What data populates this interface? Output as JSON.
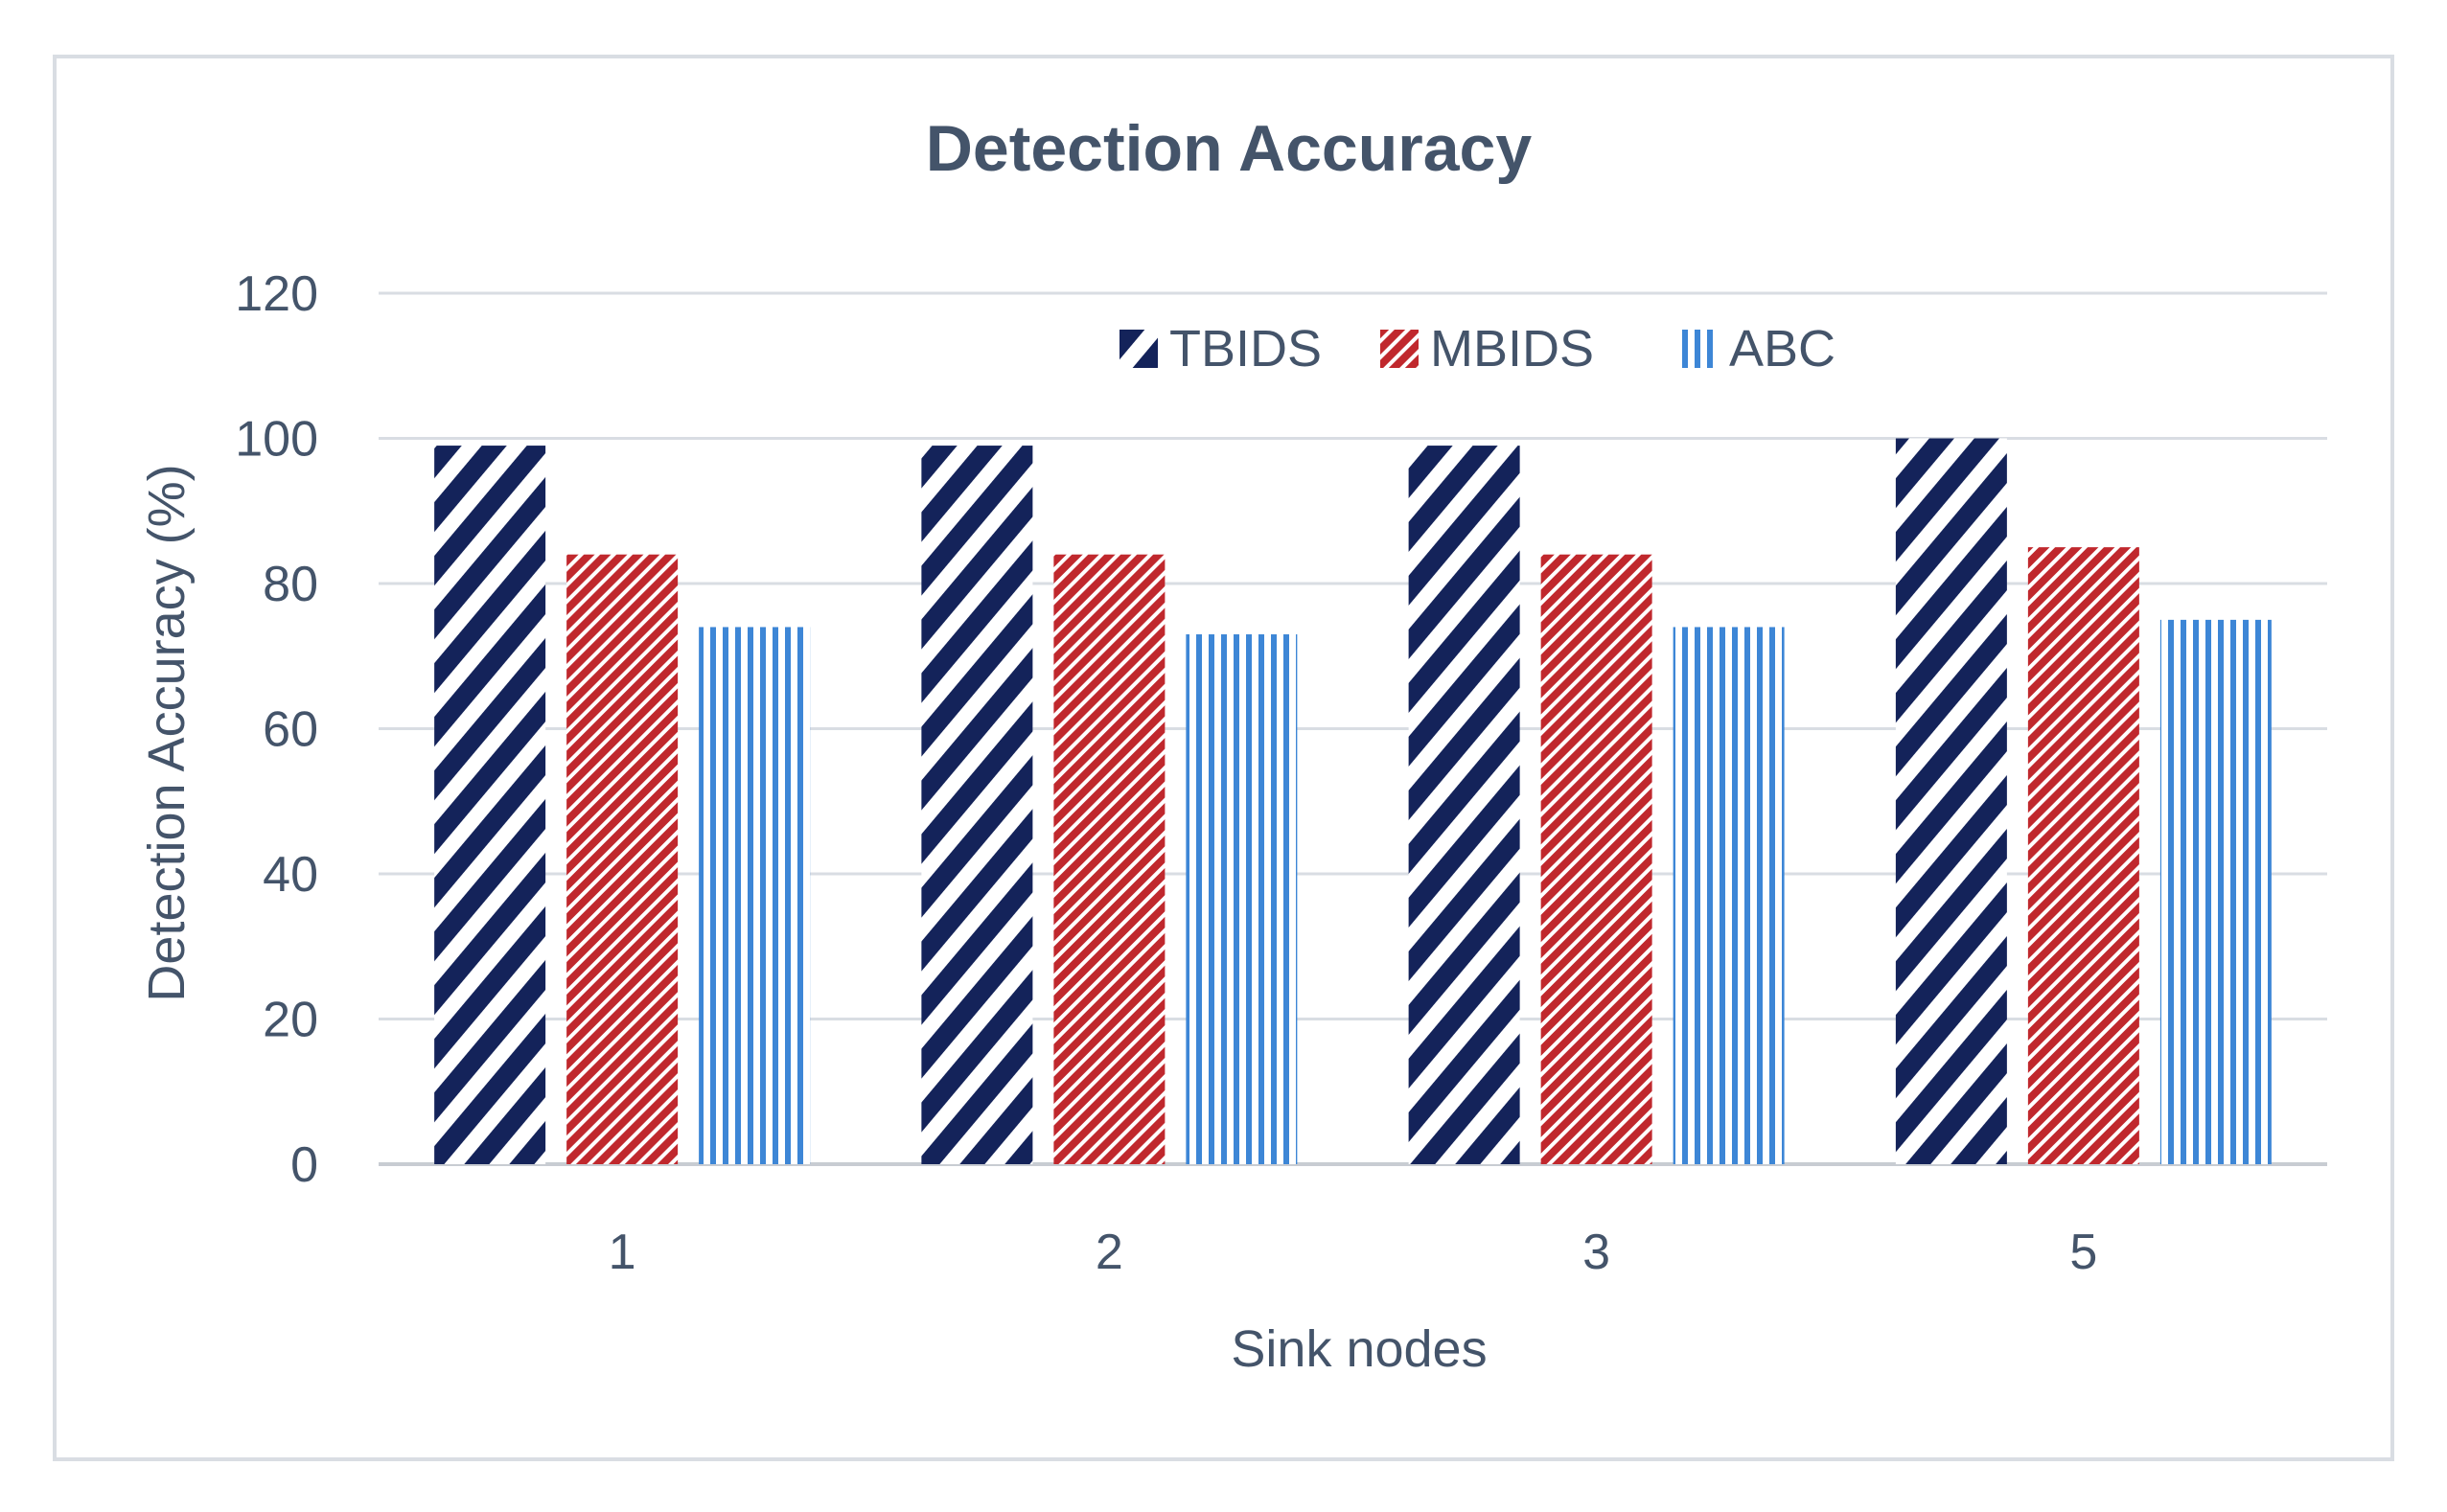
{
  "chart_data": {
    "type": "bar",
    "title": "Detection Accuracy",
    "xlabel": "Sink nodes",
    "ylabel": "Detection Accuracy  (%)",
    "categories": [
      "1",
      "2",
      "3",
      "5"
    ],
    "series": [
      {
        "name": "TBIDS",
        "values": [
          99,
          99,
          99,
          100
        ],
        "color": "#14235a",
        "pattern": "diagonal-hatch"
      },
      {
        "name": "MBIDS",
        "values": [
          84,
          84,
          84,
          85
        ],
        "color": "#c0282d",
        "pattern": "dense-diagonal-hatch"
      },
      {
        "name": "ABC",
        "values": [
          74,
          73,
          74,
          75
        ],
        "color": "#3d86d6",
        "pattern": "vertical-stripes"
      }
    ],
    "ylim": [
      0,
      120
    ],
    "yticks": [
      "0",
      "20",
      "40",
      "60",
      "80",
      "100",
      "120"
    ],
    "grid": true,
    "legend_position": "top-center"
  }
}
